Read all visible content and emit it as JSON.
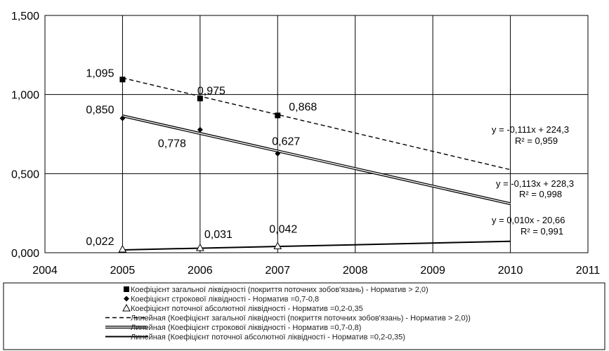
{
  "chart_data": {
    "type": "scatter",
    "xlim": [
      2004,
      2011
    ],
    "ylim": [
      0,
      1.5
    ],
    "x_ticks": [
      "2004",
      "2005",
      "2006",
      "2007",
      "2008",
      "2009",
      "2010",
      "2011"
    ],
    "y_ticks": [
      "0,000",
      "0,500",
      "1,000",
      "1,500"
    ],
    "grid": "major vertical and horizontal",
    "legend_position": "bottom",
    "series": [
      {
        "name": "Коефіцієнт загальної ліквідності (покриття поточних зобов'язань) - Норматив > 2,0)",
        "marker": "square",
        "x": [
          2005,
          2006,
          2007
        ],
        "y": [
          1.095,
          0.975,
          0.868
        ],
        "labels": [
          "1,095",
          "0,975",
          "0,868"
        ]
      },
      {
        "name": "Коефіцієнт строкової ліквідності - Норматив =0,7-0,8",
        "marker": "diamond",
        "x": [
          2005,
          2006,
          2007
        ],
        "y": [
          0.85,
          0.778,
          0.627
        ],
        "labels": [
          "0,850",
          "0,778",
          "0,627"
        ]
      },
      {
        "name": "Коефіцієнт поточної абсолютної ліквідності - Норматив =0,2-0,35",
        "marker": "triangle",
        "x": [
          2005,
          2006,
          2007
        ],
        "y": [
          0.022,
          0.031,
          0.042
        ],
        "labels": [
          "0,022",
          "0,031",
          "0,042"
        ]
      }
    ],
    "trendlines": [
      {
        "name": "Линейная (Коефіцієнт загальної ліквідності (покриття поточних зобов'язань) - Норматив > 2,0))",
        "style": "dashed",
        "x": [
          2005,
          2010
        ],
        "y": [
          1.105,
          0.525
        ],
        "equation": "y = -0,111x + 224,3",
        "r2": "R² = 0,959"
      },
      {
        "name": "Линейная (Коефіцієнт строкової ліквідності - Норматив =0,7-0,8)",
        "style": "double",
        "x": [
          2005,
          2010
        ],
        "y": [
          0.865,
          0.31
        ],
        "equation": "y = -0,113x + 228,3",
        "r2": "R² = 0,998"
      },
      {
        "name": "Линейная (Коефіцієнт поточної абсолютної ліквідності - Норматив =0,2-0,35)",
        "style": "solid-bold",
        "x": [
          2005,
          2010
        ],
        "y": [
          0.018,
          0.072
        ],
        "equation": "y = 0,010x - 20,66",
        "r2": "R² = 0,991"
      }
    ]
  }
}
